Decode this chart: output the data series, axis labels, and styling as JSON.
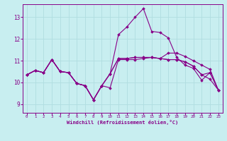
{
  "xlabel": "Windchill (Refroidissement éolien,°C)",
  "bg_color": "#c8eef0",
  "grid_color": "#b0dde0",
  "line_color": "#880088",
  "text_color": "#880088",
  "xlim": [
    -0.5,
    23.5
  ],
  "ylim": [
    8.6,
    13.6
  ],
  "yticks": [
    9,
    10,
    11,
    12,
    13
  ],
  "xticks": [
    0,
    1,
    2,
    3,
    4,
    5,
    6,
    7,
    8,
    9,
    10,
    11,
    12,
    13,
    14,
    15,
    16,
    17,
    18,
    19,
    20,
    21,
    22,
    23
  ],
  "lines": [
    [
      10.35,
      10.55,
      10.45,
      11.05,
      10.5,
      10.45,
      9.95,
      9.85,
      9.2,
      9.85,
      9.75,
      11.05,
      11.05,
      11.05,
      11.1,
      11.15,
      11.1,
      11.05,
      11.05,
      10.95,
      10.75,
      10.35,
      10.15,
      9.65
    ],
    [
      10.35,
      10.55,
      10.45,
      11.05,
      10.5,
      10.45,
      9.95,
      9.85,
      9.2,
      9.85,
      10.4,
      12.2,
      12.55,
      13.0,
      13.4,
      12.35,
      12.3,
      12.05,
      11.15,
      10.8,
      10.65,
      10.1,
      10.45,
      9.65
    ],
    [
      10.35,
      10.55,
      10.45,
      11.05,
      10.5,
      10.45,
      9.95,
      9.85,
      9.2,
      9.85,
      10.4,
      11.1,
      11.1,
      11.15,
      11.15,
      11.15,
      11.1,
      11.05,
      11.05,
      10.95,
      10.75,
      10.35,
      10.45,
      9.65
    ],
    [
      10.35,
      10.55,
      10.45,
      11.05,
      10.5,
      10.45,
      9.95,
      9.85,
      9.2,
      9.85,
      10.4,
      11.1,
      11.1,
      11.15,
      11.15,
      11.15,
      11.1,
      11.35,
      11.35,
      11.2,
      11.0,
      10.8,
      10.6,
      9.65
    ]
  ]
}
